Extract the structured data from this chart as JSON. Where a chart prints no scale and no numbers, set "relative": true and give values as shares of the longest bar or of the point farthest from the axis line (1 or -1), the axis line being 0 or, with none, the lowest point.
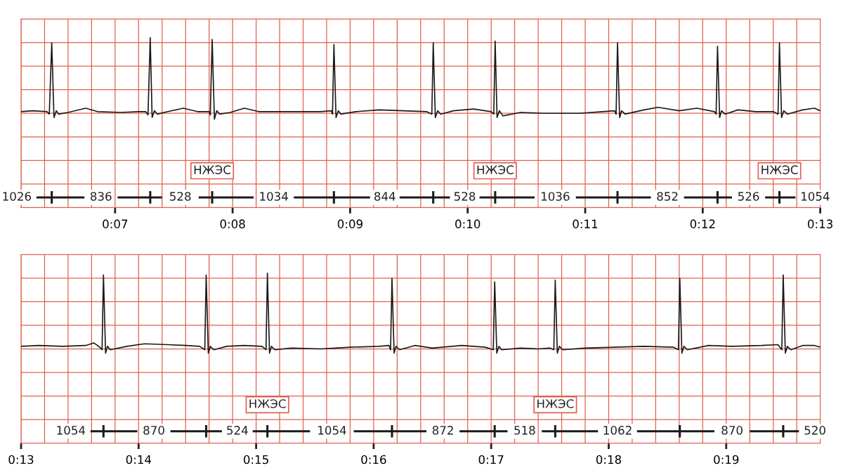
{
  "chart_data": [
    {
      "type": "line",
      "relative": true,
      "grid": "x",
      "legend": false,
      "marker": "none",
      "line_style": "solid",
      "xlim": [
        6.2,
        13
      ],
      "xticks": [
        {
          "value": 6.2,
          "label": null
        },
        {
          "value": 6.4,
          "label": null
        },
        {
          "value": 6.6,
          "label": null
        },
        {
          "value": 6.8,
          "label": null
        },
        {
          "value": 7,
          "label": "0:07"
        },
        {
          "value": 7.2,
          "label": null
        },
        {
          "value": 7.4,
          "label": null
        },
        {
          "value": 7.6,
          "label": null
        },
        {
          "value": 7.8,
          "label": null
        },
        {
          "value": 8,
          "label": "0:08"
        },
        {
          "value": 8.2,
          "label": null
        },
        {
          "value": 8.4,
          "label": null
        },
        {
          "value": 8.6,
          "label": null
        },
        {
          "value": 8.8,
          "label": null
        },
        {
          "value": 9,
          "label": "0:09"
        },
        {
          "value": 9.2,
          "label": null
        },
        {
          "value": 9.4,
          "label": null
        },
        {
          "value": 9.6,
          "label": null
        },
        {
          "value": 9.8,
          "label": null
        },
        {
          "value": 10,
          "label": "0:10"
        },
        {
          "value": 10.2,
          "label": null
        },
        {
          "value": 10.4,
          "label": null
        },
        {
          "value": 10.6,
          "label": null
        },
        {
          "value": 10.8,
          "label": null
        },
        {
          "value": 11,
          "label": "0:11"
        },
        {
          "value": 11.2,
          "label": null
        },
        {
          "value": 11.4,
          "label": null
        },
        {
          "value": 11.6,
          "label": null
        },
        {
          "value": 11.8,
          "label": null
        },
        {
          "value": 12,
          "label": "0:12"
        },
        {
          "value": 12.2,
          "label": null
        },
        {
          "value": 12.4,
          "label": null
        },
        {
          "value": 12.6,
          "label": null
        },
        {
          "value": 12.8,
          "label": null
        },
        {
          "value": 13,
          "label": "0:13"
        }
      ],
      "series": [
        {
          "color": "#1a1a1a",
          "x": [
            6.2,
            6.3,
            6.42,
            6.44,
            6.461,
            6.48,
            6.5,
            6.52,
            6.6,
            6.75,
            6.85,
            7.05,
            7.2,
            7.26,
            7.28,
            7.299,
            7.315,
            7.335,
            7.36,
            7.45,
            7.58,
            7.7,
            7.8,
            7.81,
            7.826,
            7.845,
            7.865,
            7.89,
            7.98,
            8.1,
            8.22,
            8.5,
            8.75,
            8.84,
            8.85,
            8.862,
            8.88,
            8.9,
            8.92,
            9.05,
            9.25,
            9.45,
            9.65,
            9.695,
            9.707,
            9.725,
            9.745,
            9.77,
            9.88,
            10.05,
            10.2,
            10.222,
            10.234,
            10.25,
            10.27,
            10.3,
            10.45,
            10.65,
            10.95,
            11.15,
            11.25,
            11.263,
            11.275,
            11.293,
            11.31,
            11.34,
            11.5,
            11.62,
            11.8,
            11.95,
            12.1,
            12.114,
            12.126,
            12.144,
            12.16,
            12.19,
            12.3,
            12.45,
            12.6,
            12.641,
            12.653,
            12.671,
            12.69,
            12.72,
            12.85,
            12.95,
            13.0
          ],
          "values": [
            0.565,
            0.57,
            0.565,
            0.55,
            0.97,
            0.53,
            0.57,
            0.55,
            0.56,
            0.585,
            0.565,
            0.56,
            0.565,
            0.565,
            0.545,
            1,
            0.53,
            0.57,
            0.55,
            0.565,
            0.585,
            0.565,
            0.565,
            0.545,
            0.99,
            0.52,
            0.57,
            0.55,
            0.56,
            0.585,
            0.565,
            0.565,
            0.565,
            0.57,
            0.55,
            0.96,
            0.53,
            0.57,
            0.55,
            0.565,
            0.575,
            0.57,
            0.565,
            0.55,
            0.97,
            0.53,
            0.57,
            0.55,
            0.57,
            0.58,
            0.565,
            0.55,
            0.98,
            0.53,
            0.57,
            0.54,
            0.56,
            0.555,
            0.555,
            0.565,
            0.57,
            0.55,
            0.97,
            0.53,
            0.57,
            0.55,
            0.575,
            0.59,
            0.57,
            0.585,
            0.565,
            0.55,
            0.95,
            0.53,
            0.57,
            0.55,
            0.575,
            0.565,
            0.565,
            0.55,
            0.97,
            0.53,
            0.57,
            0.55,
            0.575,
            0.585,
            0.57
          ]
        },
        {
          "color": "#1a1a1a",
          "x": [
            6.34,
            6.73,
            null,
            6.461,
            6.461,
            null,
            7.03,
            7.39,
            null,
            7.299,
            7.299,
            null,
            7.72,
            8.17,
            null,
            7.826,
            7.826,
            null,
            8.53,
            9.16,
            null,
            8.862,
            8.862,
            null,
            9.43,
            9.84,
            null,
            9.707,
            9.707,
            null,
            10.11,
            10.56,
            null,
            10.234,
            10.234,
            null,
            10.93,
            11.55,
            null,
            11.275,
            11.275,
            null,
            11.85,
            12.24,
            null,
            12.126,
            12.126,
            null,
            12.54,
            12.78,
            null,
            12.653,
            12.653
          ],
          "values": [
            0.06,
            0.06,
            null,
            0.03,
            0.09,
            null,
            0.06,
            0.06,
            null,
            0.03,
            0.09,
            null,
            0.06,
            0.06,
            null,
            0.03,
            0.09,
            null,
            0.06,
            0.06,
            null,
            0.03,
            0.09,
            null,
            0.06,
            0.06,
            null,
            0.03,
            0.09,
            null,
            0.06,
            0.06,
            null,
            0.03,
            0.09,
            null,
            0.06,
            0.06,
            null,
            0.03,
            0.09,
            null,
            0.06,
            0.06,
            null,
            0.03,
            0.09,
            null,
            0.06,
            0.06,
            null,
            0.03,
            0.09
          ]
        }
      ],
      "annotations": [
        "1026",
        "836",
        "528",
        "1034",
        "844",
        "528",
        "1036",
        "852",
        "526",
        "1054",
        {
          "text": "НЖЭС",
          "x": 7.826,
          "y": 0.09
        },
        {
          "text": "НЖЭС",
          "x": 10.234,
          "y": 0.09
        },
        {
          "text": "НЖЭС",
          "x": 12.653,
          "y": 0.09
        }
      ]
    },
    {
      "type": "line",
      "relative": true,
      "grid": "x",
      "legend": false,
      "marker": "none",
      "line_style": "solid",
      "xlim": [
        13,
        19.8
      ],
      "xticks": [
        {
          "value": 13,
          "label": "0:13"
        },
        {
          "value": 13.2,
          "label": null
        },
        {
          "value": 13.4,
          "label": null
        },
        {
          "value": 13.6,
          "label": null
        },
        {
          "value": 13.8,
          "label": null
        },
        {
          "value": 14,
          "label": "0:14"
        },
        {
          "value": 14.2,
          "label": null
        },
        {
          "value": 14.4,
          "label": null
        },
        {
          "value": 14.6,
          "label": null
        },
        {
          "value": 14.8,
          "label": null
        },
        {
          "value": 15,
          "label": "0:15"
        },
        {
          "value": 15.2,
          "label": null
        },
        {
          "value": 15.4,
          "label": null
        },
        {
          "value": 15.6,
          "label": null
        },
        {
          "value": 15.8,
          "label": null
        },
        {
          "value": 16,
          "label": "0:16"
        },
        {
          "value": 16.2,
          "label": null
        },
        {
          "value": 16.4,
          "label": null
        },
        {
          "value": 16.6,
          "label": null
        },
        {
          "value": 16.8,
          "label": null
        },
        {
          "value": 17,
          "label": "0:17"
        },
        {
          "value": 17.2,
          "label": null
        },
        {
          "value": 17.4,
          "label": null
        },
        {
          "value": 17.6,
          "label": null
        },
        {
          "value": 17.8,
          "label": null
        },
        {
          "value": 18,
          "label": "0:18"
        },
        {
          "value": 18.2,
          "label": null
        },
        {
          "value": 18.4,
          "label": null
        },
        {
          "value": 18.6,
          "label": null
        },
        {
          "value": 18.8,
          "label": null
        },
        {
          "value": 19,
          "label": "0:19"
        },
        {
          "value": 19.2,
          "label": null
        },
        {
          "value": 19.4,
          "label": null
        },
        {
          "value": 19.6,
          "label": null
        },
        {
          "value": 19.8,
          "label": null
        }
      ],
      "series": [
        {
          "color": "#1a1a1a",
          "x": [
            13.0,
            13.15,
            13.35,
            13.55,
            13.62,
            13.67,
            13.689,
            13.701,
            13.719,
            13.735,
            13.76,
            13.9,
            14.05,
            14.25,
            14.4,
            14.52,
            14.563,
            14.575,
            14.593,
            14.61,
            14.64,
            14.75,
            14.9,
            15.05,
            15.084,
            15.096,
            15.114,
            15.13,
            15.16,
            15.3,
            15.55,
            15.8,
            16.05,
            16.13,
            16.144,
            16.156,
            16.174,
            16.19,
            16.22,
            16.35,
            16.5,
            16.75,
            16.95,
            17.018,
            17.03,
            17.048,
            17.065,
            17.09,
            17.25,
            17.4,
            17.5,
            17.533,
            17.545,
            17.563,
            17.58,
            17.61,
            17.8,
            18.05,
            18.3,
            18.55,
            18.593,
            18.605,
            18.623,
            18.64,
            18.67,
            18.85,
            19.05,
            19.3,
            19.44,
            19.473,
            19.485,
            19.503,
            19.52,
            19.55,
            19.65,
            19.75,
            19.8
          ],
          "values": [
            0.57,
            0.575,
            0.57,
            0.575,
            0.59,
            0.565,
            0.55,
            0.99,
            0.53,
            0.57,
            0.55,
            0.57,
            0.585,
            0.58,
            0.575,
            0.57,
            0.55,
            0.99,
            0.53,
            0.57,
            0.55,
            0.57,
            0.575,
            0.57,
            0.55,
            1,
            0.53,
            0.57,
            0.55,
            0.56,
            0.555,
            0.565,
            0.57,
            0.575,
            0.55,
            0.97,
            0.53,
            0.57,
            0.55,
            0.575,
            0.56,
            0.575,
            0.565,
            0.55,
            0.95,
            0.53,
            0.57,
            0.55,
            0.56,
            0.555,
            0.56,
            0.55,
            0.96,
            0.53,
            0.57,
            0.55,
            0.56,
            0.565,
            0.57,
            0.565,
            0.55,
            0.97,
            0.53,
            0.57,
            0.55,
            0.575,
            0.57,
            0.575,
            0.58,
            0.55,
            0.99,
            0.53,
            0.57,
            0.55,
            0.575,
            0.575,
            0.565
          ]
        },
        {
          "color": "#1a1a1a",
          "x": [
            13.6,
            13.98,
            null,
            13.701,
            13.701,
            null,
            14.28,
            14.7,
            null,
            14.575,
            14.575,
            null,
            14.98,
            15.45,
            null,
            15.096,
            15.096,
            null,
            15.84,
            16.44,
            null,
            16.156,
            16.156,
            null,
            16.74,
            17.13,
            null,
            17.03,
            17.03,
            null,
            17.44,
            17.9,
            null,
            17.545,
            17.545,
            null,
            18.25,
            18.89,
            null,
            18.605,
            18.605,
            null,
            19.21,
            19.61,
            null,
            19.485,
            19.485
          ],
          "values": [
            0.07,
            0.07,
            null,
            0.04,
            0.1,
            null,
            0.07,
            0.07,
            null,
            0.04,
            0.1,
            null,
            0.07,
            0.07,
            null,
            0.04,
            0.1,
            null,
            0.07,
            0.07,
            null,
            0.04,
            0.1,
            null,
            0.07,
            0.07,
            null,
            0.04,
            0.1,
            null,
            0.07,
            0.07,
            null,
            0.04,
            0.1,
            null,
            0.07,
            0.07,
            null,
            0.04,
            0.1,
            null,
            0.07,
            0.07,
            null,
            0.04,
            0.1
          ]
        }
      ],
      "annotations": [
        "1054",
        "870",
        "524",
        "1054",
        "872",
        "518",
        "1062",
        "870",
        "520",
        {
          "text": "НЖЭС",
          "x": 15.096,
          "y": 0.1
        },
        {
          "text": "НЖЭС",
          "x": 17.545,
          "y": 0.1
        }
      ]
    }
  ]
}
